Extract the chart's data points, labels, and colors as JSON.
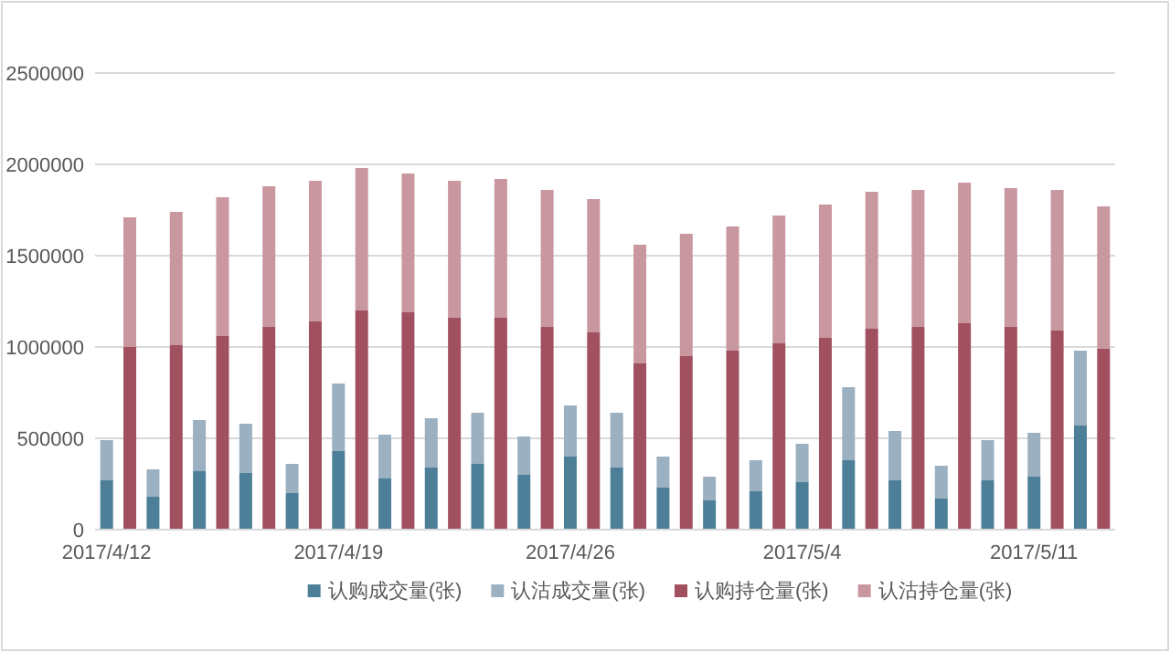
{
  "chart_data": {
    "type": "bar",
    "stacked": true,
    "categories": [
      "2017/4/12",
      null,
      null,
      null,
      null,
      null,
      null,
      null,
      null,
      null,
      "2017/4/19",
      null,
      null,
      null,
      null,
      null,
      null,
      null,
      null,
      null,
      "2017/4/26",
      null,
      null,
      null,
      null,
      null,
      null,
      null,
      null,
      null,
      "2017/5/4",
      null,
      null,
      null,
      null,
      null,
      null,
      null,
      null,
      null,
      "2017/5/11",
      null,
      null,
      null
    ],
    "ylim": [
      0,
      2500000
    ],
    "yticks": [
      0,
      500000,
      1000000,
      1500000,
      2000000,
      2500000
    ],
    "grid": "y",
    "legend": "bottom",
    "series": [
      {
        "name": "认购成交量(张)",
        "color": "#4e7f98",
        "values": [
          270000,
          null,
          180000,
          null,
          320000,
          null,
          310000,
          null,
          200000,
          null,
          430000,
          null,
          280000,
          null,
          340000,
          null,
          360000,
          null,
          300000,
          null,
          400000,
          null,
          340000,
          null,
          230000,
          null,
          160000,
          null,
          210000,
          null,
          260000,
          null,
          380000,
          null,
          270000,
          null,
          170000,
          null,
          270000,
          null,
          290000,
          null,
          570000,
          null
        ]
      },
      {
        "name": "认沽成交量(张)",
        "color": "#9bb0c1",
        "values": [
          220000,
          null,
          150000,
          null,
          280000,
          null,
          270000,
          null,
          160000,
          null,
          370000,
          null,
          240000,
          null,
          270000,
          null,
          280000,
          null,
          210000,
          null,
          280000,
          null,
          300000,
          null,
          170000,
          null,
          130000,
          null,
          170000,
          null,
          210000,
          null,
          400000,
          null,
          270000,
          null,
          180000,
          null,
          220000,
          null,
          240000,
          null,
          410000,
          null
        ]
      },
      {
        "name": "认购持仓量(张)",
        "color": "#a1505f",
        "values": [
          null,
          1000000,
          null,
          1010000,
          null,
          1060000,
          null,
          1110000,
          null,
          1140000,
          null,
          1200000,
          null,
          1190000,
          null,
          1160000,
          null,
          1160000,
          null,
          1110000,
          null,
          1080000,
          null,
          910000,
          null,
          950000,
          null,
          980000,
          null,
          1020000,
          null,
          1050000,
          null,
          1100000,
          null,
          1110000,
          null,
          1130000,
          null,
          1110000,
          null,
          1090000,
          null,
          990000
        ]
      },
      {
        "name": "认沽持仓量(张)",
        "color": "#c9979f",
        "values": [
          null,
          710000,
          null,
          730000,
          null,
          760000,
          null,
          770000,
          null,
          770000,
          null,
          780000,
          null,
          760000,
          null,
          750000,
          null,
          760000,
          null,
          750000,
          null,
          730000,
          null,
          650000,
          null,
          670000,
          null,
          680000,
          null,
          700000,
          null,
          730000,
          null,
          750000,
          null,
          750000,
          null,
          770000,
          null,
          760000,
          null,
          770000,
          null,
          780000
        ]
      }
    ]
  }
}
